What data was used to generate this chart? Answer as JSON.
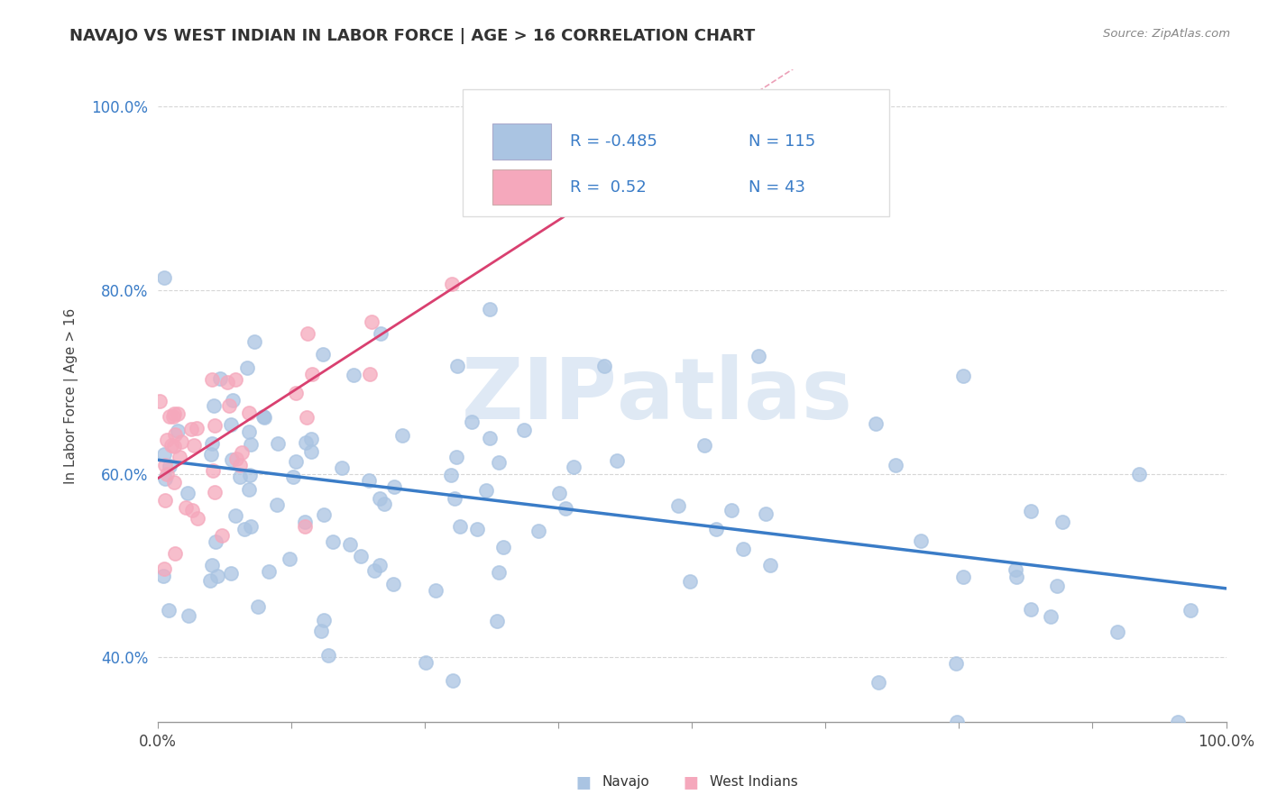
{
  "title": "NAVAJO VS WEST INDIAN IN LABOR FORCE | AGE > 16 CORRELATION CHART",
  "source": "Source: ZipAtlas.com",
  "ylabel": "In Labor Force | Age > 16",
  "xlim": [
    0.0,
    1.0
  ],
  "ylim": [
    0.33,
    1.04
  ],
  "navajo_R": -0.485,
  "navajo_N": 115,
  "west_indian_R": 0.52,
  "west_indian_N": 43,
  "navajo_color": "#aac4e2",
  "west_indian_color": "#f5a8bc",
  "navajo_line_color": "#3a7cc7",
  "west_indian_line_color": "#d94070",
  "watermark_zip": "ZIP",
  "watermark_atlas": "atlas",
  "background_color": "#ffffff",
  "grid_color": "#cccccc",
  "yticks": [
    0.4,
    0.6,
    0.8,
    1.0
  ],
  "ytick_labels": [
    "40.0%",
    "60.0%",
    "80.0%",
    "100.0%"
  ],
  "xticks": [
    0.0,
    0.125,
    0.25,
    0.375,
    0.5,
    0.625,
    0.75,
    0.875,
    1.0
  ],
  "navajo_line_x0": 0.0,
  "navajo_line_x1": 1.0,
  "navajo_line_y0": 0.615,
  "navajo_line_y1": 0.475,
  "wi_line_x0": 0.0,
  "wi_line_x1": 0.38,
  "wi_line_y0": 0.595,
  "wi_line_y1": 0.88
}
